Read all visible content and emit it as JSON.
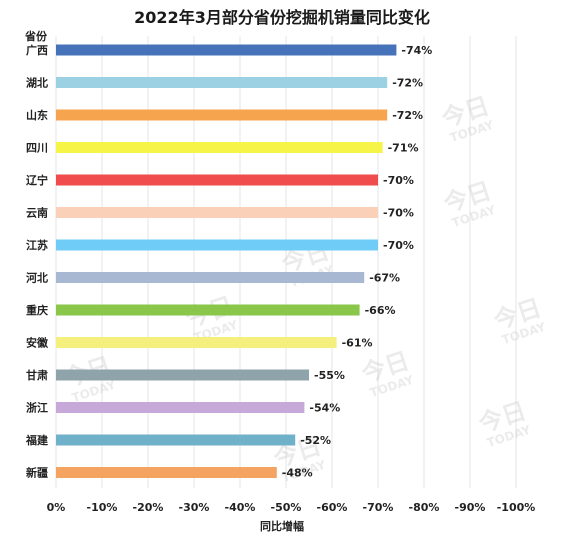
{
  "chart_data": {
    "type": "bar",
    "orientation": "horizontal",
    "title": "2022年3月部分省份挖掘机销量同比变化",
    "ylabel": "省份",
    "xlabel": "同比增幅",
    "categories": [
      "广西",
      "湖北",
      "山东",
      "四川",
      "辽宁",
      "云南",
      "江苏",
      "河北",
      "重庆",
      "安徽",
      "甘肃",
      "浙江",
      "福建",
      "新疆"
    ],
    "values": [
      -74,
      -72,
      -72,
      -71,
      -70,
      -70,
      -70,
      -67,
      -66,
      -61,
      -55,
      -54,
      -52,
      -48
    ],
    "value_labels": [
      "-74%",
      "-72%",
      "-72%",
      "-71%",
      "-70%",
      "-70%",
      "-70%",
      "-67%",
      "-66%",
      "-61%",
      "-55%",
      "-54%",
      "-52%",
      "-48%"
    ],
    "colors": [
      "#4672b9",
      "#9bd1e2",
      "#f7a44e",
      "#f6f547",
      "#f04b4d",
      "#fbd0b8",
      "#6fccf7",
      "#a8b8d2",
      "#8ac64a",
      "#f5f07d",
      "#8ea3aa",
      "#c6a9d9",
      "#6fb1c8",
      "#f5a360"
    ],
    "xlim": [
      0,
      -100
    ],
    "xticks": [
      "0%",
      "-10%",
      "-20%",
      "-30%",
      "-40%",
      "-50%",
      "-60%",
      "-70%",
      "-80%",
      "-90%",
      "-100%"
    ],
    "xtick_values": [
      0,
      -10,
      -20,
      -30,
      -40,
      -50,
      -60,
      -70,
      -80,
      -90,
      -100
    ],
    "grid": true,
    "watermark": "今日 TODAY"
  }
}
